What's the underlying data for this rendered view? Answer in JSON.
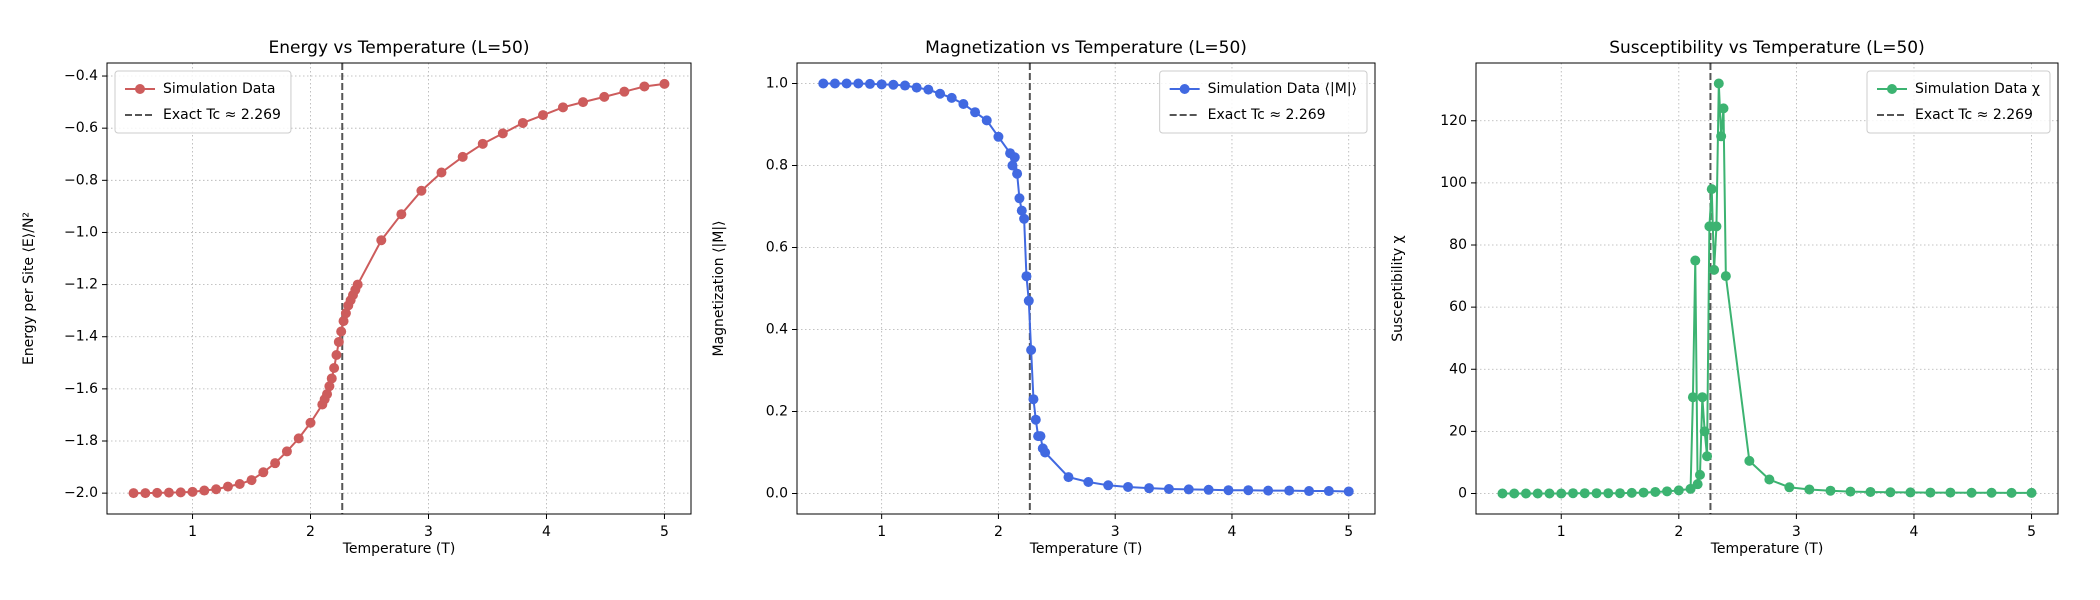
{
  "chart_data": [
    {
      "type": "line",
      "title": "Energy vs Temperature (L=50)",
      "x_label": "Temperature (T)",
      "y_label": "Energy per Site ⟨E⟩/N²",
      "xlim": [
        0.275,
        5.225
      ],
      "xticks": [
        1,
        2,
        3,
        4,
        5
      ],
      "ylim": [
        -2.08,
        -0.35
      ],
      "yticks": [
        {
          "value": -2.0,
          "label": "−2.0"
        },
        {
          "value": -1.8,
          "label": "−1.8"
        },
        {
          "value": -1.6,
          "label": "−1.6"
        },
        {
          "value": -1.4,
          "label": "−1.4"
        },
        {
          "value": -1.2,
          "label": "−1.2"
        },
        {
          "value": -1.0,
          "label": "−1.0"
        },
        {
          "value": -0.8,
          "label": "−0.8"
        },
        {
          "value": -0.6,
          "label": "−0.6"
        },
        {
          "value": -0.4,
          "label": "−0.4"
        }
      ],
      "grid": true,
      "legend": "upper left",
      "x": [
        0.5,
        0.6,
        0.7,
        0.8,
        0.9,
        1.0,
        1.1,
        1.2,
        1.3,
        1.4,
        1.5,
        1.6,
        1.7,
        1.8,
        1.9,
        2.0,
        2.1,
        2.12,
        2.14,
        2.16,
        2.18,
        2.2,
        2.22,
        2.24,
        2.26,
        2.28,
        2.3,
        2.32,
        2.34,
        2.36,
        2.38,
        2.4,
        2.6,
        2.77,
        2.94,
        3.11,
        3.29,
        3.46,
        3.63,
        3.8,
        3.97,
        4.14,
        4.31,
        4.49,
        4.66,
        4.83,
        5.0
      ],
      "series": [
        {
          "name": "Simulation Data",
          "color": "#cd5c5c",
          "values": [
            -2.0,
            -2.0,
            -1.999,
            -1.998,
            -1.997,
            -1.995,
            -1.99,
            -1.985,
            -1.975,
            -1.965,
            -1.95,
            -1.92,
            -1.885,
            -1.84,
            -1.79,
            -1.73,
            -1.66,
            -1.64,
            -1.62,
            -1.59,
            -1.56,
            -1.52,
            -1.47,
            -1.42,
            -1.38,
            -1.34,
            -1.31,
            -1.28,
            -1.26,
            -1.24,
            -1.22,
            -1.2,
            -1.03,
            -0.93,
            -0.84,
            -0.77,
            -0.71,
            -0.66,
            -0.62,
            -0.58,
            -0.55,
            -0.52,
            -0.5,
            -0.48,
            -0.46,
            -0.44,
            -0.43
          ]
        }
      ],
      "vline": {
        "value": 2.269,
        "label": "Exact Tc ≈ 2.269",
        "color": "#555555"
      }
    },
    {
      "type": "line",
      "title": "Magnetization vs Temperature (L=50)",
      "x_label": "Temperature (T)",
      "y_label": "Magnetization ⟨|M|⟩",
      "xlim": [
        0.275,
        5.225
      ],
      "xticks": [
        1,
        2,
        3,
        4,
        5
      ],
      "ylim": [
        -0.05,
        1.05
      ],
      "yticks": [
        {
          "value": 0,
          "label": "0.0"
        },
        0.2,
        0.4,
        0.6,
        0.8,
        {
          "value": 1,
          "label": "1.0"
        }
      ],
      "grid": true,
      "legend": "upper right",
      "x": [
        0.5,
        0.6,
        0.7,
        0.8,
        0.9,
        1.0,
        1.1,
        1.2,
        1.3,
        1.4,
        1.5,
        1.6,
        1.7,
        1.8,
        1.9,
        2.0,
        2.1,
        2.12,
        2.14,
        2.16,
        2.18,
        2.2,
        2.22,
        2.24,
        2.26,
        2.28,
        2.3,
        2.32,
        2.34,
        2.36,
        2.38,
        2.4,
        2.6,
        2.77,
        2.94,
        3.11,
        3.29,
        3.46,
        3.63,
        3.8,
        3.97,
        4.14,
        4.31,
        4.49,
        4.66,
        4.83,
        5.0
      ],
      "series": [
        {
          "name": "Simulation Data ⟨|M|⟩",
          "color": "#4169e1",
          "values": [
            1.0,
            1.0,
            1.0,
            1.0,
            0.999,
            0.998,
            0.997,
            0.995,
            0.99,
            0.985,
            0.975,
            0.965,
            0.95,
            0.93,
            0.91,
            0.87,
            0.83,
            0.8,
            0.82,
            0.78,
            0.72,
            0.69,
            0.67,
            0.53,
            0.47,
            0.35,
            0.23,
            0.18,
            0.14,
            0.14,
            0.11,
            0.1,
            0.04,
            0.028,
            0.02,
            0.016,
            0.013,
            0.011,
            0.01,
            0.009,
            0.008,
            0.008,
            0.007,
            0.007,
            0.006,
            0.006,
            0.005
          ]
        }
      ],
      "vline": {
        "value": 2.269,
        "label": "Exact Tc ≈ 2.269",
        "color": "#555555"
      }
    },
    {
      "type": "line",
      "title": "Susceptibility vs Temperature (L=50)",
      "x_label": "Temperature (T)",
      "y_label": "Susceptibility χ",
      "xlim": [
        0.275,
        5.225
      ],
      "xticks": [
        1,
        2,
        3,
        4,
        5
      ],
      "ylim": [
        -6.6,
        138.6
      ],
      "yticks": [
        0,
        20,
        40,
        60,
        80,
        100,
        120
      ],
      "grid": true,
      "legend": "upper right",
      "x": [
        0.5,
        0.6,
        0.7,
        0.8,
        0.9,
        1.0,
        1.1,
        1.2,
        1.3,
        1.4,
        1.5,
        1.6,
        1.7,
        1.8,
        1.9,
        2.0,
        2.1,
        2.12,
        2.14,
        2.16,
        2.18,
        2.2,
        2.22,
        2.24,
        2.26,
        2.28,
        2.3,
        2.32,
        2.34,
        2.36,
        2.38,
        2.4,
        2.6,
        2.77,
        2.94,
        3.11,
        3.29,
        3.46,
        3.63,
        3.8,
        3.97,
        4.14,
        4.31,
        4.49,
        4.66,
        4.83,
        5.0
      ],
      "series": [
        {
          "name": "Simulation Data χ",
          "color": "#3cb371",
          "values": [
            0.0,
            0.0,
            0.0,
            0.0,
            0.0,
            0.0,
            0.1,
            0.1,
            0.1,
            0.1,
            0.1,
            0.2,
            0.3,
            0.5,
            0.7,
            1.0,
            1.5,
            31,
            75,
            3,
            6,
            31,
            20,
            12,
            86,
            98,
            72,
            86,
            132,
            115,
            124,
            70,
            10.5,
            4.5,
            2,
            1.3,
            0.9,
            0.6,
            0.5,
            0.4,
            0.35,
            0.3,
            0.3,
            0.25,
            0.25,
            0.2,
            0.2
          ]
        }
      ],
      "vline": {
        "value": 2.269,
        "label": "Exact Tc ≈ 2.269",
        "color": "#555555"
      }
    }
  ]
}
